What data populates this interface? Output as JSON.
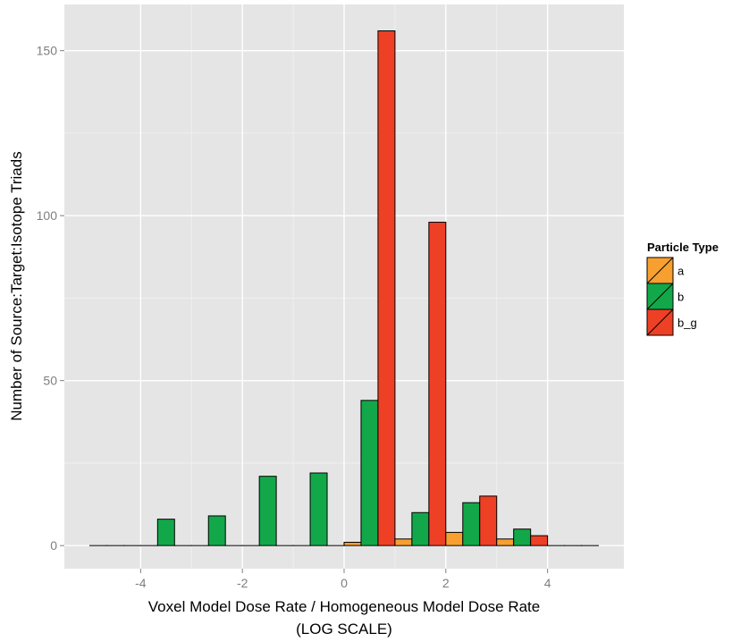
{
  "chart_data": {
    "type": "bar",
    "title": "",
    "xlabel_lines": [
      "Voxel Model Dose Rate / Homogeneous Model Dose Rate",
      "(LOG SCALE)"
    ],
    "ylabel": "Number of Source:Target:Isotope Triads",
    "xlim": [
      -5.5,
      5.5
    ],
    "ylim": [
      -7,
      164
    ],
    "x_ticks": [
      -4,
      -2,
      0,
      2,
      4
    ],
    "x_tick_labels": [
      "-4",
      "-2",
      "0",
      "2",
      "4"
    ],
    "y_ticks": [
      0,
      50,
      100,
      150
    ],
    "y_tick_labels": [
      "0",
      "50",
      "100",
      "150"
    ],
    "grid": true,
    "bin_width": 1,
    "bin_centers": [
      -4.5,
      -3.5,
      -2.5,
      -1.5,
      -0.5,
      0.5,
      1.5,
      2.5,
      3.5,
      4.5
    ],
    "series": [
      {
        "name": "a",
        "color": "#F7A030",
        "values": [
          0,
          0,
          0,
          0,
          0,
          1,
          2,
          4,
          2,
          0
        ]
      },
      {
        "name": "b",
        "color": "#12A84A",
        "values": [
          0,
          8,
          9,
          21,
          22,
          44,
          10,
          13,
          5,
          0
        ]
      },
      {
        "name": "b_g",
        "color": "#EE4025",
        "values": [
          0,
          0,
          0,
          0,
          0,
          156,
          98,
          15,
          3,
          0
        ]
      }
    ],
    "legend": {
      "title": "Particle Type",
      "position": "right"
    }
  }
}
